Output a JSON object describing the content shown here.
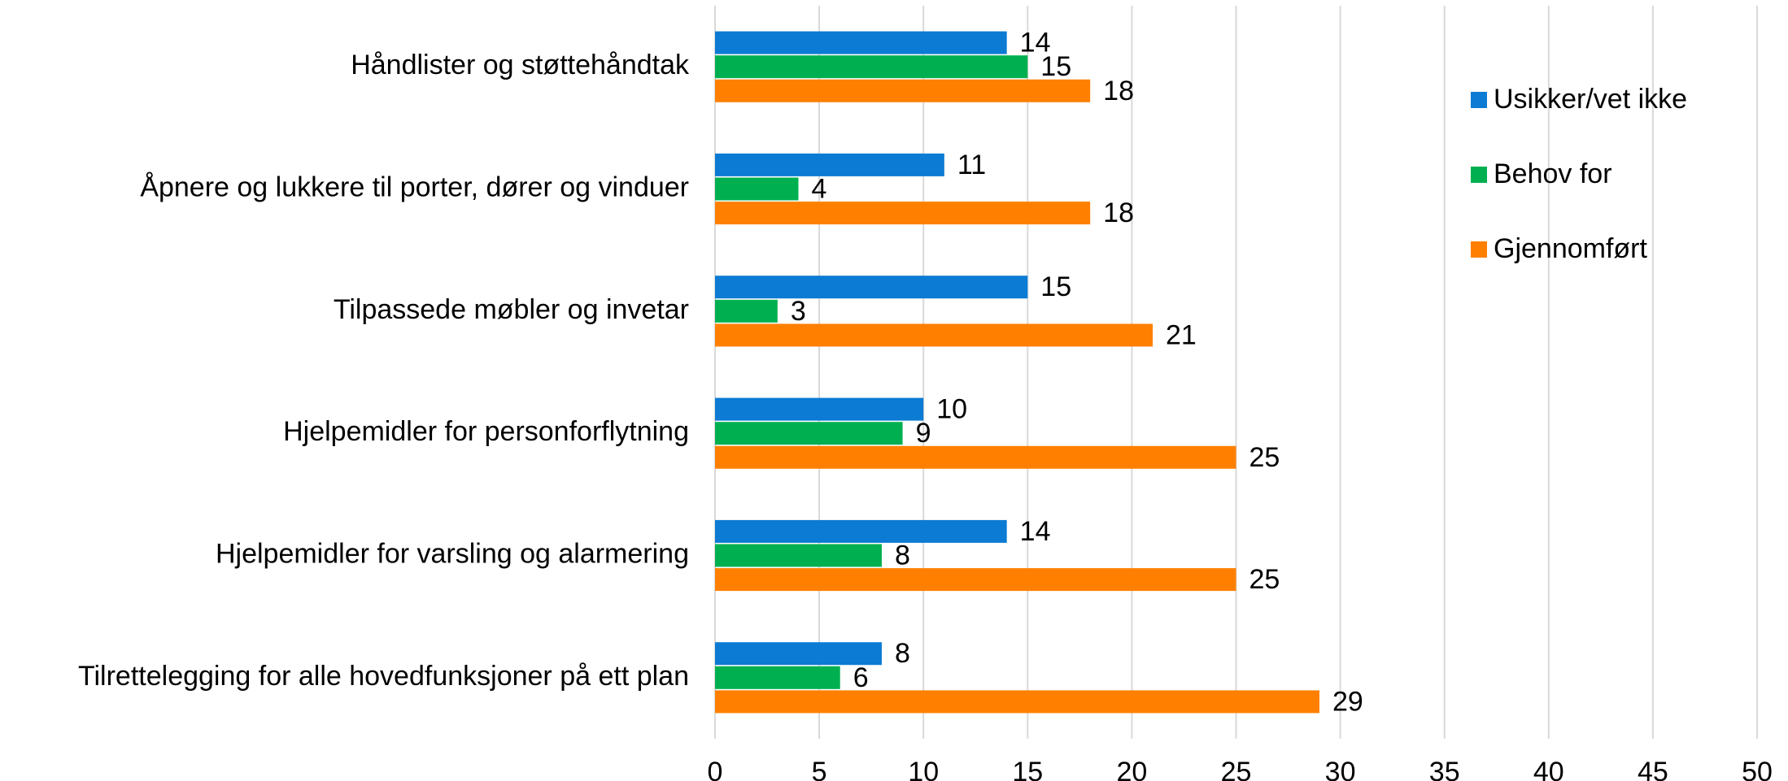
{
  "chart_data": {
    "type": "hbar",
    "categories": [
      "Håndlister og støttehåndtak",
      "Åpnere og lukkere til porter, dører og vinduer",
      "Tilpassede møbler og invetar",
      "Hjelpemidler for personforflytning",
      "Hjelpemidler for varsling og alarmering",
      "Tilrettelegging for alle hovedfunksjoner på ett plan"
    ],
    "series": [
      {
        "name": "Usikker/vet ikke",
        "color": "#0b7bd3",
        "values": [
          14,
          11,
          15,
          10,
          14,
          8
        ]
      },
      {
        "name": "Behov for",
        "color": "#00b050",
        "values": [
          15,
          4,
          3,
          9,
          8,
          6
        ]
      },
      {
        "name": "Gjennomført",
        "color": "#ff8000",
        "values": [
          18,
          18,
          21,
          25,
          25,
          29
        ]
      }
    ],
    "xlim": [
      0,
      50
    ],
    "xticks": [
      0,
      5,
      10,
      15,
      20,
      25,
      30,
      35,
      40,
      45,
      50
    ],
    "grid": true,
    "legend": "right"
  }
}
